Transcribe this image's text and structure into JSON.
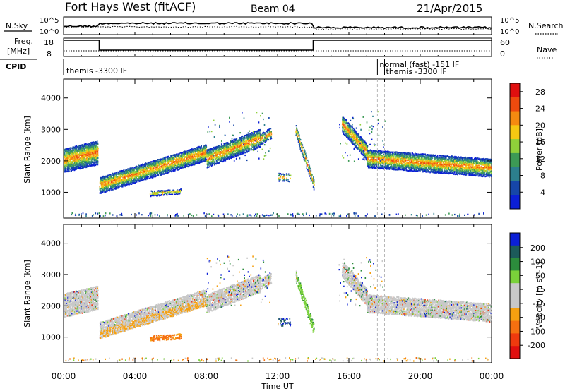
{
  "header": {
    "station": "Fort Hays West (fitACF)",
    "beam": "Beam 04",
    "date": "21/Apr/2015"
  },
  "strip_labels": {
    "nsky": "N.Sky",
    "nsearch": "N.Search",
    "freq": "Freq.",
    "freq_unit": "[MHz]",
    "nave": "Nave",
    "cpid": "CPID",
    "left_tick_top": "10^5",
    "left_tick_bottom": "10^0",
    "right_tick_top": "10^5",
    "right_tick_bottom": "10^0",
    "freq_tick_top": "18",
    "freq_tick_bottom": "8",
    "nave_tick_top": "60",
    "nave_tick_bottom": "0"
  },
  "cpid_segments": [
    {
      "label": "themis -3300 IF",
      "start_h": 0,
      "end_h": 17.6
    },
    {
      "label": "normal (fast) -151 IF",
      "start_h": 17.6,
      "end_h": 18.0
    },
    {
      "label": "themis -3300 IF",
      "start_h": 18.0,
      "end_h": 24
    }
  ],
  "colors": {
    "power": [
      "#0b1fd6",
      "#1646a8",
      "#2c7f8d",
      "#3c9a55",
      "#8fd13a",
      "#f5c812",
      "#f58a10",
      "#ef4a0e",
      "#e00f0f"
    ],
    "velocity": [
      "#0b1fd6",
      "#1c5a5a",
      "#2c8c3c",
      "#7ad13a",
      "#c8c8c8",
      "#c8c8c8",
      "#f5a010",
      "#f57010",
      "#ef3a0e",
      "#e00f0f"
    ]
  },
  "chart_data": [
    {
      "type": "heatmap",
      "title": "Power",
      "xlabel": "Time UT",
      "ylabel": "Slant Range [km]",
      "colorbar_label": "Power [dB]",
      "colorbar_ticks": [
        "4",
        "8",
        "12",
        "16",
        "20",
        "24",
        "28"
      ],
      "colorbar_range": [
        0,
        30
      ],
      "xlim": [
        0,
        24
      ],
      "ylim": [
        180,
        4600
      ],
      "x_ticks": [
        "00:00",
        "04:00",
        "08:00",
        "12:00",
        "16:00",
        "20:00",
        "00:00"
      ],
      "y_ticks": [
        "1000",
        "2000",
        "3000",
        "4000"
      ]
    },
    {
      "type": "heatmap",
      "title": "Velocity",
      "xlabel": "Time UT",
      "ylabel": "Slant Range [km]",
      "colorbar_label": "Velocity [m s^-1]",
      "colorbar_ticks": [
        "200",
        "100",
        "50",
        "15",
        "-15",
        "-50",
        "-100",
        "-200"
      ],
      "xlim": [
        0,
        24
      ],
      "ylim": [
        180,
        4600
      ],
      "x_ticks": [
        "00:00",
        "04:00",
        "08:00",
        "12:00",
        "16:00",
        "20:00",
        "00:00"
      ],
      "y_ticks": [
        "1000",
        "2000",
        "3000",
        "4000"
      ]
    }
  ],
  "footer": {
    "xaxis_title": "Time UT"
  }
}
